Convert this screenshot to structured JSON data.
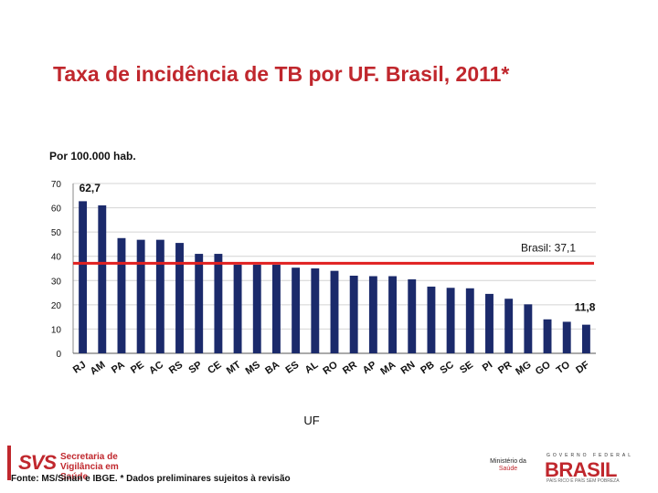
{
  "header": {
    "title": "Taxa de incidência de TB por UF. Brasil, 2011*"
  },
  "chart_data": {
    "type": "bar",
    "unit_label": "Por 100.000 hab.",
    "xlabel": "UF",
    "ylabel": "",
    "ylim": [
      0,
      70
    ],
    "yticks": [
      0,
      10,
      20,
      30,
      40,
      50,
      60,
      70
    ],
    "grid": true,
    "categories": [
      "RJ",
      "AM",
      "PA",
      "PE",
      "AC",
      "RS",
      "SP",
      "CE",
      "MT",
      "MS",
      "BA",
      "ES",
      "AL",
      "RO",
      "RR",
      "AP",
      "MA",
      "RN",
      "PB",
      "SC",
      "SE",
      "PI",
      "PR",
      "MG",
      "GO",
      "TO",
      "DF"
    ],
    "values": [
      62.7,
      61,
      47.5,
      46.8,
      46.8,
      45.5,
      41,
      41,
      36.5,
      36.5,
      36.5,
      35.3,
      35,
      34,
      32,
      31.8,
      31.8,
      30.5,
      27.5,
      27,
      26.8,
      24.5,
      22.5,
      20.2,
      14,
      13,
      11.8
    ],
    "series_color": "#1b2a6b",
    "data_labels": [
      {
        "category": "RJ",
        "text": "62,7"
      },
      {
        "category": "DF",
        "text": "11,8"
      }
    ],
    "reference_line": {
      "value": 37.1,
      "label": "Brasil: 37,1",
      "color": "#e02020"
    }
  },
  "footer": {
    "logo_abbr": "SVS",
    "org_line1": "Secretaria de",
    "org_line2": "Vigilância em Saúde",
    "source": "Fonte: MS/Sinan e IBGE. * Dados preliminares sujeitos à revisão",
    "ministry_line1": "Ministério da",
    "ministry_line2": "Saúde",
    "gov_top": "GOVERNO FEDERAL",
    "gov_name": "BRASIL",
    "gov_slogan": "PAÍS RICO É PAÍS SEM POBREZA"
  }
}
